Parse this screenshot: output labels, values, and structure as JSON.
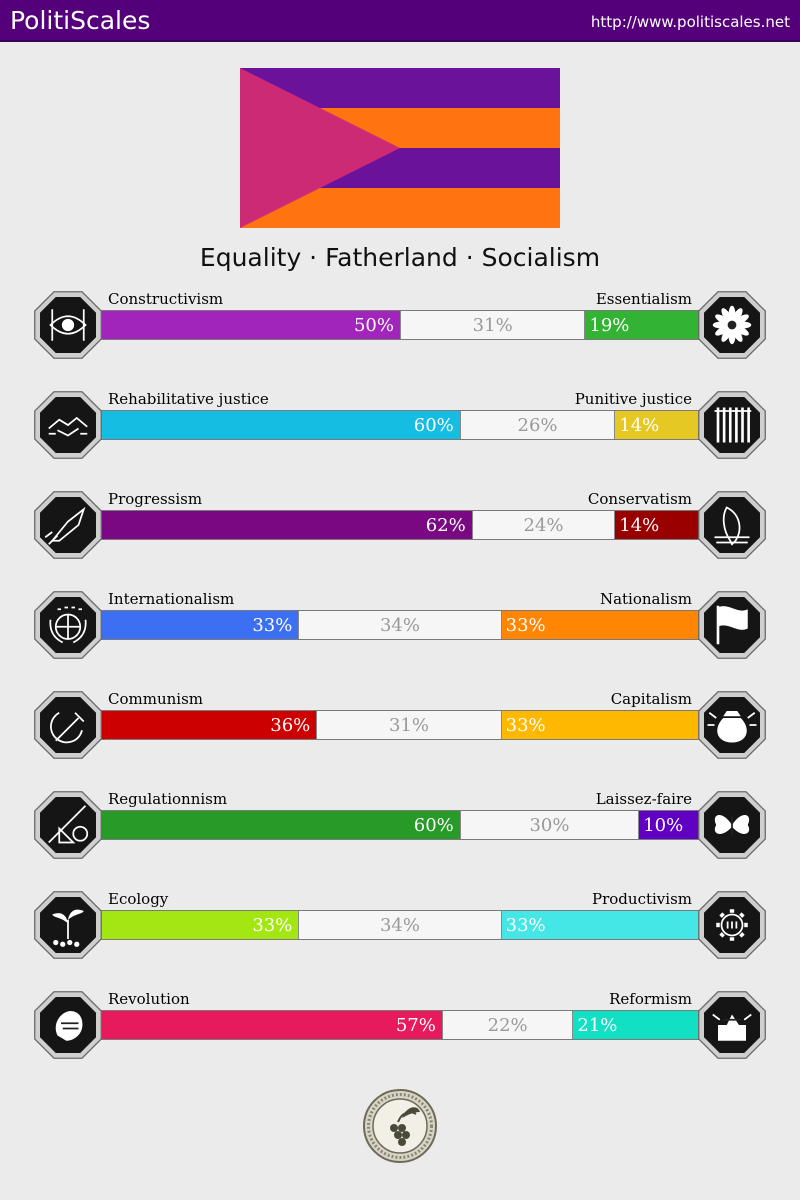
{
  "header": {
    "brand": "PolitiScales",
    "url": "http://www.politiscales.net"
  },
  "flag": {
    "stripes": [
      "#6a1299",
      "#ff7310",
      "#6a1299",
      "#ff7310"
    ],
    "triangle": "#cc2a74"
  },
  "motto": "Equality · Fatherland · Socialism",
  "axes": [
    {
      "left": {
        "label": "Constructivism",
        "value": 50,
        "text": "50%",
        "color": "#a225bb",
        "icon": "eye-grid-icon"
      },
      "center": {
        "value": 31,
        "text": "31%"
      },
      "right": {
        "label": "Essentialism",
        "value": 19,
        "text": "19%",
        "color": "#33b333",
        "icon": "chrysanthemum-icon"
      }
    },
    {
      "left": {
        "label": "Rehabilitative justice",
        "value": 60,
        "text": "60%",
        "color": "#15bde3",
        "icon": "handshake-icon"
      },
      "center": {
        "value": 26,
        "text": "26%"
      },
      "right": {
        "label": "Punitive justice",
        "value": 14,
        "text": "14%",
        "color": "#e6c825",
        "icon": "prison-bars-icon"
      }
    },
    {
      "left": {
        "label": "Progressism",
        "value": 62,
        "text": "62%",
        "color": "#7a0882",
        "icon": "rocket-icon"
      },
      "center": {
        "value": 24,
        "text": "24%"
      },
      "right": {
        "label": "Conservatism",
        "value": 14,
        "text": "14%",
        "color": "#990000",
        "icon": "quill-icon"
      }
    },
    {
      "left": {
        "label": "Internationalism",
        "value": 33,
        "text": "33%",
        "color": "#3c6ff2",
        "icon": "globe-laurel-icon"
      },
      "center": {
        "value": 34,
        "text": "34%"
      },
      "right": {
        "label": "Nationalism",
        "value": 33,
        "text": "33%",
        "color": "#ff8503",
        "icon": "flag-icon"
      }
    },
    {
      "left": {
        "label": "Communism",
        "value": 36,
        "text": "36%",
        "color": "#cc0000",
        "icon": "hammer-sickle-icon"
      },
      "center": {
        "value": 31,
        "text": "31%"
      },
      "right": {
        "label": "Capitalism",
        "value": 33,
        "text": "33%",
        "color": "#ffb800",
        "icon": "money-bag-icon"
      }
    },
    {
      "left": {
        "label": "Regulationnism",
        "value": 60,
        "text": "60%",
        "color": "#279a27",
        "icon": "ruler-shapes-icon"
      },
      "center": {
        "value": 30,
        "text": "30%"
      },
      "right": {
        "label": "Laissez-faire",
        "value": 10,
        "text": "10%",
        "color": "#6000c2",
        "icon": "butterfly-icon"
      }
    },
    {
      "left": {
        "label": "Ecology",
        "value": 33,
        "text": "33%",
        "color": "#a3e612",
        "icon": "sprout-icon"
      },
      "center": {
        "value": 34,
        "text": "34%"
      },
      "right": {
        "label": "Productivism",
        "value": 33,
        "text": "33%",
        "color": "#45e6e6",
        "icon": "gear-icon"
      }
    },
    {
      "left": {
        "label": "Revolution",
        "value": 57,
        "text": "57%",
        "color": "#e61a5c",
        "icon": "fist-icon"
      },
      "center": {
        "value": 22,
        "text": "22%"
      },
      "right": {
        "label": "Reformism",
        "value": 21,
        "text": "21%",
        "color": "#12e0c4",
        "icon": "ballot-box-icon"
      }
    }
  ],
  "footer": {
    "seal_icon": "grape-seal-icon"
  }
}
